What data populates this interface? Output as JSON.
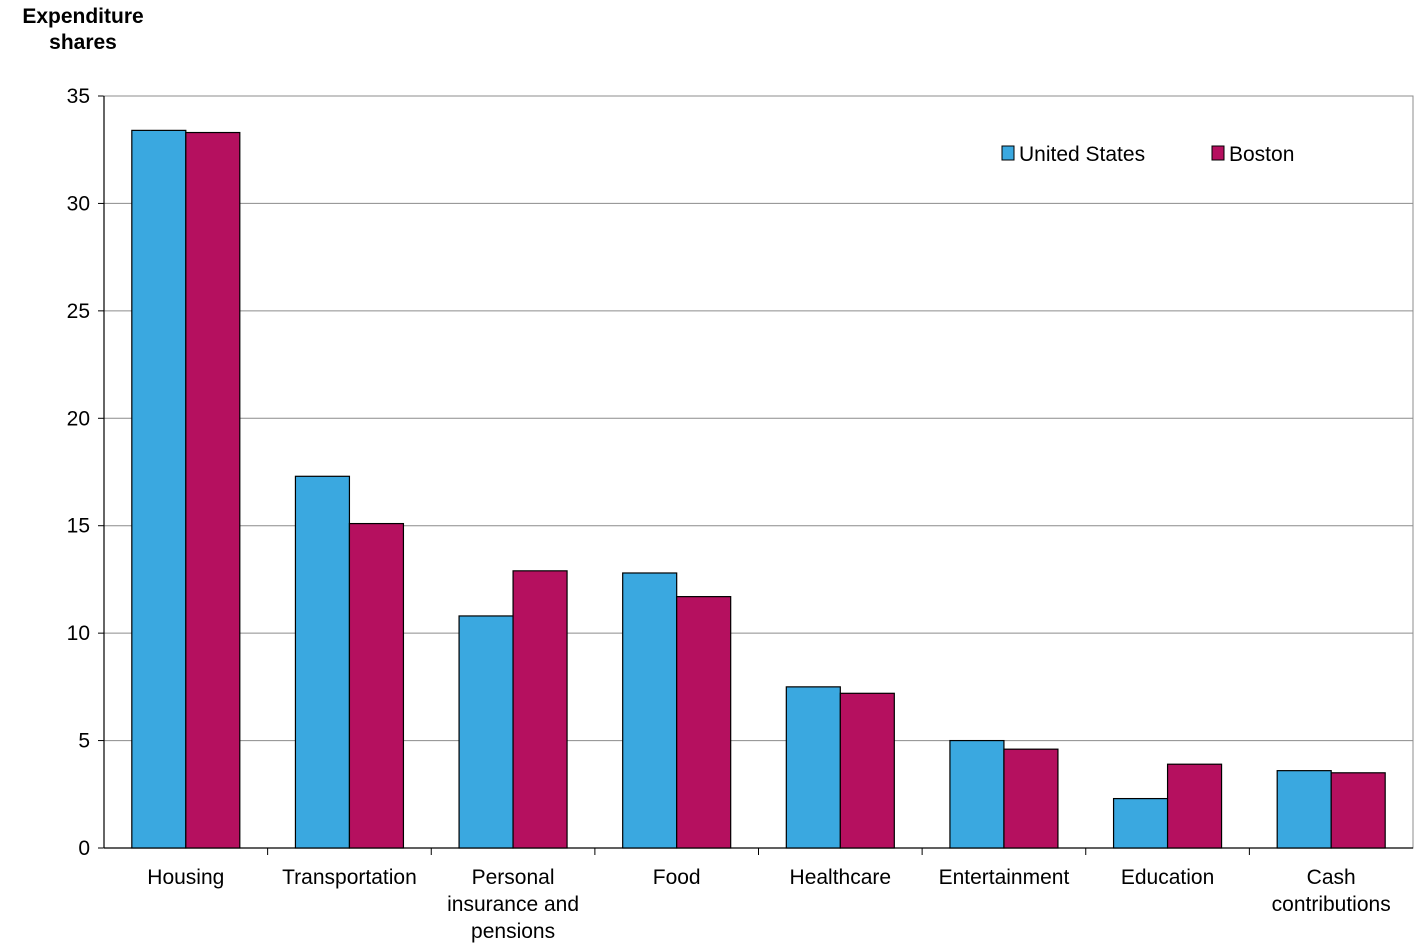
{
  "chart_data": {
    "type": "bar",
    "ylabel": "Expenditure shares",
    "ylabel_lines": [
      "Expenditure",
      "shares"
    ],
    "xlabel": "",
    "ylim": [
      0,
      35
    ],
    "yticks": [
      0,
      5,
      10,
      15,
      20,
      25,
      30,
      35
    ],
    "grid": true,
    "legend_position": "top-right",
    "categories": [
      "Housing",
      "Transportation",
      "Personal insurance and pensions",
      "Food",
      "Healthcare",
      "Entertainment",
      "Education",
      "Cash contributions"
    ],
    "category_label_lines": [
      [
        "Housing"
      ],
      [
        "Transportation"
      ],
      [
        "Personal",
        "insurance and",
        "pensions"
      ],
      [
        "Food"
      ],
      [
        "Healthcare"
      ],
      [
        "Entertainment"
      ],
      [
        "Education"
      ],
      [
        "Cash",
        "contributions"
      ]
    ],
    "series": [
      {
        "name": "United States",
        "color": "#3aa8e0",
        "values": [
          33.4,
          17.3,
          10.8,
          12.8,
          7.5,
          5.0,
          2.3,
          3.6
        ]
      },
      {
        "name": "Boston",
        "color": "#b5105f",
        "values": [
          33.3,
          15.1,
          12.9,
          11.7,
          7.2,
          4.6,
          3.9,
          3.5
        ]
      }
    ]
  }
}
